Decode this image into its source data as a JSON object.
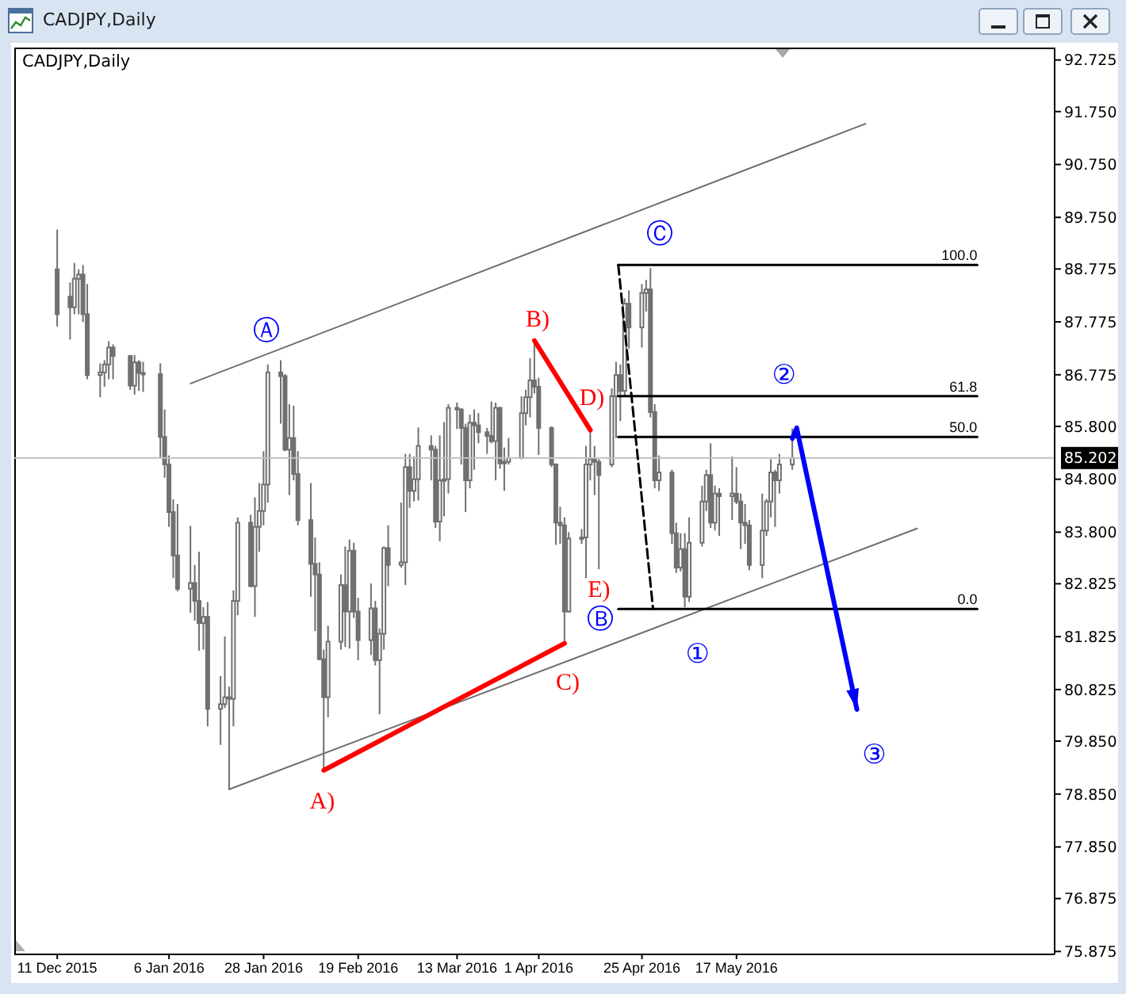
{
  "chart_data": {
    "type": "candlestick",
    "title": "CADJPY,Daily",
    "color": "#707070",
    "x": [
      "2015-12-11",
      "2015-12-14",
      "2015-12-15",
      "2015-12-16",
      "2015-12-17",
      "2015-12-18",
      "2015-12-21",
      "2015-12-22",
      "2015-12-23",
      "2015-12-24",
      "2015-12-28",
      "2015-12-29",
      "2015-12-30",
      "2015-12-31",
      "2016-01-04",
      "2016-01-05",
      "2016-01-06",
      "2016-01-07",
      "2016-01-08",
      "2016-01-11",
      "2016-01-12",
      "2016-01-13",
      "2016-01-14",
      "2016-01-15",
      "2016-01-18",
      "2016-01-19",
      "2016-01-20",
      "2016-01-21",
      "2016-01-22",
      "2016-01-25",
      "2016-01-26",
      "2016-01-27",
      "2016-01-28",
      "2016-01-29",
      "2016-02-01",
      "2016-02-02",
      "2016-02-03",
      "2016-02-04",
      "2016-02-05",
      "2016-02-08",
      "2016-02-09",
      "2016-02-10",
      "2016-02-11",
      "2016-02-12",
      "2016-02-15",
      "2016-02-16",
      "2016-02-17",
      "2016-02-18",
      "2016-02-19",
      "2016-02-22",
      "2016-02-23",
      "2016-02-24",
      "2016-02-25",
      "2016-02-26",
      "2016-02-29",
      "2016-03-01",
      "2016-03-02",
      "2016-03-03",
      "2016-03-04",
      "2016-03-07",
      "2016-03-08",
      "2016-03-09",
      "2016-03-10",
      "2016-03-11",
      "2016-03-13",
      "2016-03-14",
      "2016-03-15",
      "2016-03-16",
      "2016-03-17",
      "2016-03-18",
      "2016-03-20",
      "2016-03-21",
      "2016-03-22",
      "2016-03-23",
      "2016-03-24",
      "2016-03-25",
      "2016-03-28",
      "2016-03-29",
      "2016-03-30",
      "2016-03-31",
      "2016-04-01",
      "2016-04-04",
      "2016-04-05",
      "2016-04-06",
      "2016-04-07",
      "2016-04-08",
      "2016-04-11",
      "2016-04-12",
      "2016-04-13",
      "2016-04-14",
      "2016-04-15",
      "2016-04-18",
      "2016-04-19",
      "2016-04-20",
      "2016-04-21",
      "2016-04-22",
      "2016-04-25",
      "2016-04-26",
      "2016-04-27",
      "2016-04-28",
      "2016-04-29",
      "2016-05-02",
      "2016-05-03",
      "2016-05-04",
      "2016-05-05",
      "2016-05-06",
      "2016-05-09",
      "2016-05-10",
      "2016-05-11",
      "2016-05-12",
      "2016-05-13",
      "2016-05-16",
      "2016-05-17",
      "2016-05-18",
      "2016-05-19",
      "2016-05-20",
      "2016-05-23",
      "2016-05-24",
      "2016-05-25",
      "2016-05-26",
      "2016-05-27",
      "2016-05-30"
    ],
    "ohlc": [
      [
        88.77,
        89.52,
        87.69,
        87.92
      ],
      [
        88.25,
        88.52,
        87.44,
        88.05
      ],
      [
        88.05,
        88.89,
        87.92,
        88.59
      ],
      [
        88.59,
        88.77,
        87.92,
        88.67
      ],
      [
        88.67,
        88.85,
        87.77,
        87.92
      ],
      [
        87.92,
        88.49,
        86.69,
        86.77
      ],
      [
        86.77,
        86.99,
        86.35,
        86.82
      ],
      [
        86.82,
        87.05,
        86.55,
        86.97
      ],
      [
        86.97,
        87.41,
        86.69,
        87.29
      ],
      [
        87.29,
        87.35,
        86.69,
        87.13
      ],
      [
        87.13,
        87.15,
        86.49,
        86.57
      ],
      [
        86.57,
        87.15,
        86.4,
        87.01
      ],
      [
        87.01,
        87.05,
        86.47,
        86.81
      ],
      [
        86.81,
        87.02,
        86.45,
        86.79
      ],
      [
        86.79,
        86.99,
        85.19,
        85.6
      ],
      [
        85.6,
        86.12,
        84.83,
        85.08
      ],
      [
        85.08,
        85.25,
        83.9,
        84.18
      ],
      [
        84.18,
        84.42,
        82.93,
        83.36
      ],
      [
        83.36,
        84.33,
        82.68,
        82.73
      ],
      [
        82.73,
        83.92,
        82.28,
        82.84
      ],
      [
        82.84,
        83.18,
        82.13,
        82.5
      ],
      [
        82.5,
        83.43,
        81.56,
        82.08
      ],
      [
        82.08,
        82.38,
        81.58,
        82.2
      ],
      [
        82.2,
        82.48,
        80.13,
        80.46
      ],
      [
        80.46,
        81.08,
        79.78,
        80.55
      ],
      [
        80.55,
        81.83,
        80.48,
        80.68
      ],
      [
        80.68,
        80.88,
        78.93,
        80.65
      ],
      [
        80.65,
        82.7,
        80.13,
        82.5
      ],
      [
        82.5,
        84.08,
        82.23,
        83.98
      ],
      [
        83.98,
        84.13,
        82.76,
        82.78
      ],
      [
        82.78,
        84.46,
        82.2,
        83.9
      ],
      [
        83.9,
        84.73,
        83.43,
        84.2
      ],
      [
        84.2,
        85.33,
        83.93,
        84.7
      ],
      [
        84.7,
        86.97,
        84.36,
        86.82
      ],
      [
        86.82,
        87.05,
        85.85,
        86.75
      ],
      [
        86.75,
        86.79,
        85.33,
        85.36
      ],
      [
        85.36,
        86.22,
        84.5,
        85.58
      ],
      [
        85.58,
        86.19,
        84.78,
        84.9
      ],
      [
        84.9,
        85.33,
        83.93,
        84.03
      ],
      [
        84.03,
        84.73,
        82.58,
        83.2
      ],
      [
        83.2,
        83.7,
        81.93,
        83.0
      ],
      [
        83.0,
        83.23,
        81.38,
        81.4
      ],
      [
        81.4,
        81.58,
        79.3,
        80.68
      ],
      [
        80.68,
        82.03,
        80.3,
        81.73
      ],
      [
        81.73,
        83.0,
        81.58,
        82.8
      ],
      [
        82.8,
        83.53,
        81.63,
        82.3
      ],
      [
        82.3,
        83.66,
        81.6,
        83.45
      ],
      [
        83.45,
        83.6,
        82.18,
        82.3
      ],
      [
        82.3,
        82.56,
        81.38,
        81.76
      ],
      [
        81.76,
        82.83,
        81.48,
        82.36
      ],
      [
        82.36,
        82.5,
        81.28,
        81.38
      ],
      [
        81.38,
        81.98,
        80.36,
        81.88
      ],
      [
        81.88,
        83.53,
        81.58,
        83.5
      ],
      [
        83.5,
        83.93,
        82.78,
        83.18
      ],
      [
        83.18,
        84.36,
        83.13,
        83.23
      ],
      [
        83.23,
        85.28,
        82.8,
        85.03
      ],
      [
        85.03,
        85.28,
        84.26,
        84.58
      ],
      [
        84.58,
        85.23,
        84.38,
        84.8
      ],
      [
        84.8,
        85.78,
        84.4,
        85.43
      ],
      [
        85.43,
        85.63,
        84.78,
        85.36
      ],
      [
        85.36,
        85.43,
        83.88,
        84.0
      ],
      [
        84.0,
        85.63,
        83.63,
        84.78
      ],
      [
        84.78,
        85.88,
        84.1,
        84.8
      ],
      [
        84.8,
        86.22,
        84.53,
        86.15
      ],
      [
        86.15,
        86.25,
        85.75,
        86.12
      ],
      [
        86.12,
        86.14,
        85.08,
        85.77
      ],
      [
        85.77,
        85.85,
        84.18,
        84.78
      ],
      [
        84.78,
        86.02,
        84.63,
        85.87
      ],
      [
        85.87,
        86.12,
        84.98,
        85.82
      ],
      [
        85.82,
        86.05,
        85.48,
        85.69
      ],
      [
        85.69,
        85.77,
        85.28,
        85.62
      ],
      [
        85.62,
        86.27,
        85.48,
        85.52
      ],
      [
        85.52,
        86.25,
        84.78,
        86.15
      ],
      [
        86.15,
        86.17,
        85.0,
        85.1
      ],
      [
        85.1,
        85.4,
        84.58,
        85.13
      ],
      [
        85.13,
        85.58,
        85.08,
        85.2
      ],
      [
        85.2,
        86.37,
        85.18,
        86.05
      ],
      [
        86.05,
        86.49,
        85.82,
        86.35
      ],
      [
        86.35,
        87.09,
        85.97,
        86.67
      ],
      [
        86.67,
        87.42,
        86.42,
        86.55
      ],
      [
        86.55,
        86.72,
        85.26,
        85.77
      ],
      [
        85.77,
        85.8,
        85.03,
        85.08
      ],
      [
        85.08,
        85.1,
        83.56,
        83.98
      ],
      [
        83.98,
        84.28,
        83.58,
        83.93
      ],
      [
        83.93,
        84.08,
        81.7,
        82.3
      ],
      [
        82.3,
        83.8,
        82.28,
        83.68
      ],
      [
        83.68,
        83.86,
        83.58,
        83.7
      ],
      [
        83.7,
        85.43,
        82.93,
        85.08
      ],
      [
        85.08,
        85.73,
        84.78,
        85.18
      ],
      [
        85.18,
        85.43,
        84.5,
        85.13
      ],
      [
        85.13,
        85.18,
        83.1,
        84.88
      ],
      [
        85.08,
        86.52,
        85.03,
        86.37
      ],
      [
        86.37,
        87.02,
        85.58,
        86.77
      ],
      [
        86.77,
        86.97,
        85.9,
        86.47
      ],
      [
        86.47,
        88.22,
        86.37,
        88.12
      ],
      [
        88.12,
        88.37,
        87.27,
        87.67
      ],
      [
        87.67,
        88.49,
        87.29,
        88.32
      ],
      [
        88.32,
        88.57,
        87.97,
        88.39
      ],
      [
        88.39,
        88.79,
        85.97,
        86.07
      ],
      [
        86.07,
        86.22,
        84.63,
        84.78
      ],
      [
        84.78,
        85.25,
        84.58,
        84.93
      ],
      [
        84.93,
        84.98,
        83.58,
        83.78
      ],
      [
        83.78,
        83.98,
        83.03,
        83.13
      ],
      [
        83.13,
        83.78,
        83.06,
        83.48
      ],
      [
        83.48,
        83.78,
        82.38,
        82.58
      ],
      [
        82.58,
        84.08,
        82.48,
        83.6
      ],
      [
        83.6,
        84.68,
        83.53,
        84.38
      ],
      [
        84.38,
        84.98,
        84.2,
        84.88
      ],
      [
        84.88,
        85.48,
        83.88,
        83.98
      ],
      [
        83.98,
        84.68,
        83.83,
        84.53
      ],
      [
        84.53,
        84.63,
        83.73,
        84.48
      ],
      [
        84.48,
        85.23,
        84.03,
        84.53
      ],
      [
        84.53,
        85.03,
        84.33,
        84.38
      ],
      [
        84.38,
        84.53,
        83.48,
        83.98
      ],
      [
        83.98,
        84.33,
        83.58,
        83.93
      ],
      [
        83.93,
        84.03,
        83.08,
        83.18
      ],
      [
        83.18,
        84.53,
        82.93,
        83.83
      ],
      [
        83.83,
        84.43,
        83.73,
        84.38
      ],
      [
        84.38,
        85.18,
        84.08,
        84.93
      ],
      [
        84.93,
        84.98,
        83.9,
        84.78
      ],
      [
        84.78,
        85.28,
        84.53,
        85.08
      ],
      [
        85.08,
        85.76,
        84.98,
        85.202
      ]
    ],
    "series": [
      {
        "type": "line",
        "color": "#6e6e6e",
        "x": [
          "2016-01-11",
          "2016-06-16"
        ],
        "values": [
          86.61,
          91.52
        ]
      },
      {
        "type": "line",
        "color": "#6e6e6e",
        "x": [
          "2016-01-20",
          "2016-06-28"
        ],
        "values": [
          78.94,
          83.87
        ]
      },
      {
        "type": "line",
        "color": "#ff0000",
        "x": [
          "2016-02-11",
          "2016-04-07"
        ],
        "values": [
          79.3,
          81.7
        ]
      },
      {
        "type": "line",
        "color": "#ff0000",
        "x": [
          "2016-03-31",
          "2016-04-13"
        ],
        "values": [
          87.42,
          85.73
        ]
      },
      {
        "type": "line",
        "color": "#000000",
        "line_style": "dashed",
        "x": [
          "2016-04-19T12:00",
          "2016-04-27T14:00"
        ],
        "values": [
          88.85,
          82.35
        ]
      },
      {
        "type": "line",
        "name": "100.0",
        "color": "#000000",
        "x": [
          "2016-04-19T12:00",
          "2016-07-12"
        ],
        "values": [
          88.85,
          88.85
        ]
      },
      {
        "type": "line",
        "name": "61.8",
        "color": "#000000",
        "x": [
          "2016-04-19T12:00",
          "2016-07-12"
        ],
        "values": [
          86.37,
          86.37
        ]
      },
      {
        "type": "line",
        "name": "50.0",
        "color": "#000000",
        "x": [
          "2016-04-19T12:00",
          "2016-07-12"
        ],
        "values": [
          85.6,
          85.6
        ]
      },
      {
        "type": "line",
        "name": "0.0",
        "color": "#000000",
        "x": [
          "2016-04-19T12:00",
          "2016-07-12"
        ],
        "values": [
          82.35,
          82.35
        ]
      },
      {
        "type": "line",
        "color": "#0000ff",
        "x": [
          "2016-05-30",
          "2016-05-31",
          "2016-06-14"
        ],
        "values": [
          85.57,
          85.77,
          80.45
        ]
      }
    ],
    "annotations": [
      {
        "text": "Ⓐ",
        "x": "2016-02-01",
        "y": 87.05
      },
      {
        "text": "Ⓑ",
        "x": "2016-04-15",
        "y": 83.1
      },
      {
        "text": "Ⓒ",
        "x": "2016-04-27",
        "y": 88.79
      },
      {
        "text": "①",
        "x": "2016-05-05",
        "y": 82.38
      },
      {
        "text": "②",
        "x": "2016-05-31",
        "y": 85.77
      },
      {
        "text": "③",
        "x": "2016-06-14",
        "y": 80.45
      },
      {
        "text": "A)",
        "x": "2016-02-11",
        "y": 79.3
      },
      {
        "text": "B)",
        "x": "2016-03-31",
        "y": 87.42
      },
      {
        "text": "C)",
        "x": "2016-04-07",
        "y": 81.7
      },
      {
        "text": "D)",
        "x": "2016-04-13",
        "y": 85.73
      },
      {
        "text": "E)",
        "x": "2016-04-15",
        "y": 83.1
      }
    ],
    "ref_lines": [
      {
        "axis": "y",
        "value": 85.202,
        "label": "85.202",
        "color": "#c0c0c0"
      }
    ],
    "xlim": [
      "2015-12-01",
      "2016-07-30"
    ],
    "xticks": [
      {
        "value": "2015-12-11",
        "label": "11 Dec 2015"
      },
      {
        "value": "2016-01-06",
        "label": "6 Jan 2016"
      },
      {
        "value": "2016-01-28",
        "label": "28 Jan 2016"
      },
      {
        "value": "2016-02-19",
        "label": "19 Feb 2016"
      },
      {
        "value": "2016-03-13",
        "label": "13 Mar 2016"
      },
      {
        "value": "2016-04-01",
        "label": "1 Apr 2016"
      },
      {
        "value": "2016-04-25",
        "label": "25 Apr 2016"
      },
      {
        "value": "2016-05-17",
        "label": "17 May 2016"
      }
    ],
    "ylim": [
      75.82,
      92.96
    ],
    "yticks": [
      92.725,
      {
        "value": 91.75,
        "label": "91.750"
      },
      {
        "value": 90.75,
        "label": "90.750"
      },
      {
        "value": 89.75,
        "label": "89.750"
      },
      88.775,
      87.775,
      86.775,
      {
        "value": 85.8,
        "label": "85.800"
      },
      {
        "value": 84.8,
        "label": "84.800"
      },
      {
        "value": 83.8,
        "label": "83.800"
      },
      82.825,
      81.825,
      80.825,
      {
        "value": 79.85,
        "label": "79.850"
      },
      {
        "value": 78.85,
        "label": "78.850"
      },
      {
        "value": 77.85,
        "label": "77.850"
      },
      76.875,
      75.875
    ]
  }
}
